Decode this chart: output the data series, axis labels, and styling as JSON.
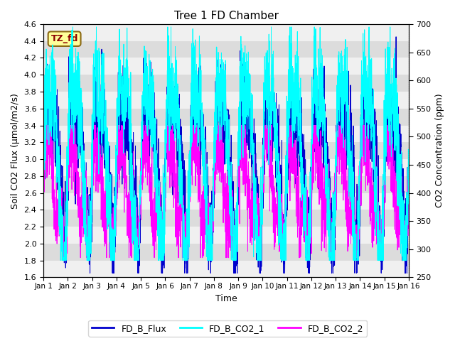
{
  "title": "Tree 1 FD Chamber",
  "xlabel": "Time",
  "ylabel_left": "Soil CO2 Flux (μmol/m2/s)",
  "ylabel_right": "CO2 Concentration (ppm)",
  "ylim_left": [
    1.6,
    4.6
  ],
  "ylim_right": [
    250,
    700
  ],
  "xlim": [
    0,
    15
  ],
  "xtick_labels": [
    "Jan 1",
    "Jan 2",
    "Jan 3",
    "Jan 4",
    "Jan 5",
    "Jan 6",
    "Jan 7",
    "Jan 8",
    "Jan 9",
    "Jan 10",
    "Jan 11",
    "Jan 12",
    "Jan 13",
    "Jan 14",
    "Jan 15",
    "Jan 16"
  ],
  "yticks_left": [
    1.6,
    1.8,
    2.0,
    2.2,
    2.4,
    2.6,
    2.8,
    3.0,
    3.2,
    3.4,
    3.6,
    3.8,
    4.0,
    4.2,
    4.4,
    4.6
  ],
  "yticks_right": [
    250,
    300,
    350,
    400,
    450,
    500,
    550,
    600,
    650,
    700
  ],
  "color_flux": "#0000CC",
  "color_co2_1": "#00FFFF",
  "color_co2_2": "#FF00FF",
  "legend_labels": [
    "FD_B_Flux",
    "FD_B_CO2_1",
    "FD_B_CO2_2"
  ],
  "annotation_text": "TZ_fd",
  "annotation_bg": "#FFFF99",
  "annotation_fg": "#8B0000",
  "bg_color_dark": "#DCDCDC",
  "bg_color_light": "#F0F0F0",
  "n_points": 3000,
  "seed": 42
}
